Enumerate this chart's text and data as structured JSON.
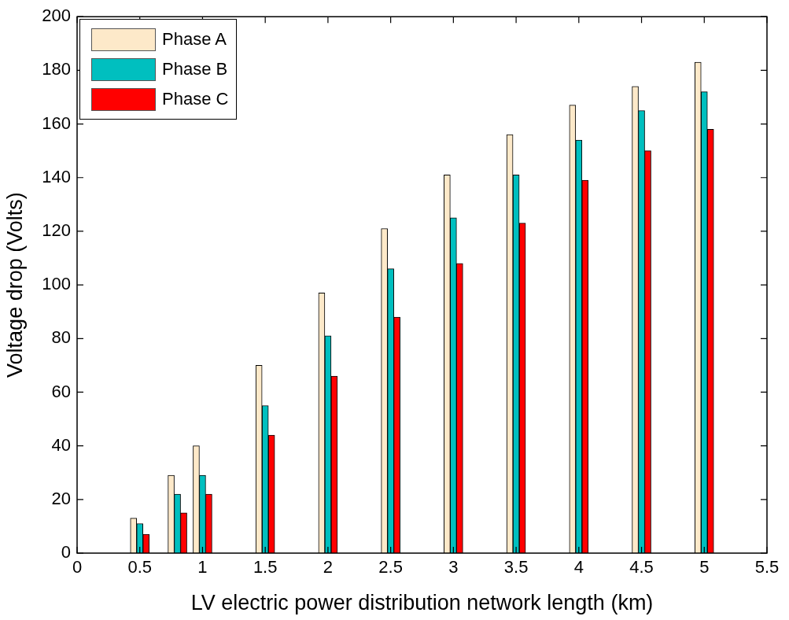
{
  "chart_data": {
    "type": "bar",
    "xlabel": "LV electric power distribution network length (km)",
    "ylabel": "Voltage drop (Volts)",
    "x": [
      0.5,
      0.8,
      1,
      1.5,
      2,
      2.5,
      3,
      3.5,
      4,
      4.5,
      5
    ],
    "series": [
      {
        "name": "Phase A",
        "color": "#fde9c9",
        "values": [
          13,
          29,
          40,
          70,
          97,
          121,
          141,
          156,
          167,
          174,
          183
        ]
      },
      {
        "name": "Phase B",
        "color": "#00bfbf",
        "values": [
          11,
          22,
          29,
          55,
          81,
          106,
          125,
          141,
          154,
          165,
          172
        ]
      },
      {
        "name": "Phase C",
        "color": "#ff0000",
        "values": [
          7,
          15,
          22,
          44,
          66,
          88,
          108,
          123,
          139,
          150,
          158
        ]
      }
    ],
    "xlim": [
      0,
      5.5
    ],
    "xticks": [
      0,
      0.5,
      1,
      1.5,
      2,
      2.5,
      3,
      3.5,
      4,
      4.5,
      5,
      5.5
    ],
    "ylim": [
      0,
      200
    ],
    "yticks": [
      0,
      20,
      40,
      60,
      80,
      100,
      120,
      140,
      160,
      180,
      200
    ],
    "legend": "top left",
    "grid": false
  }
}
